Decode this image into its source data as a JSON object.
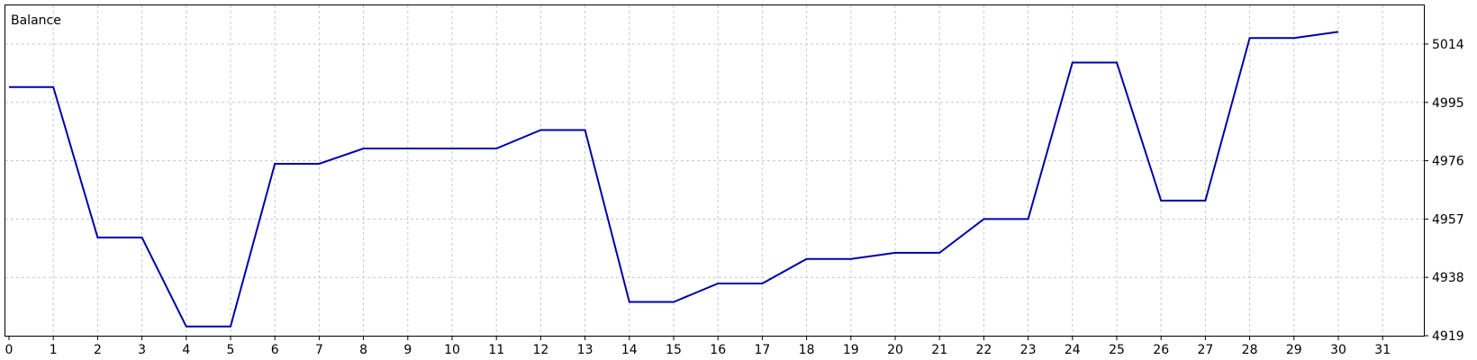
{
  "chart_data": {
    "type": "line",
    "title": "Balance",
    "x": [
      0,
      1,
      2,
      3,
      4,
      5,
      6,
      7,
      8,
      9,
      10,
      11,
      12,
      13,
      14,
      15,
      16,
      17,
      18,
      19,
      20,
      21,
      22,
      23,
      24,
      25,
      26,
      27,
      28,
      29,
      30
    ],
    "series": [
      {
        "values": [
          5000,
          5000,
          4951,
          4951,
          4922,
          4922,
          4975,
          4975,
          4980,
          4980,
          4980,
          4980,
          4986,
          4986,
          4930,
          4930,
          4936,
          4936,
          4944,
          4944,
          4946,
          4946,
          4957,
          4957,
          5008,
          5008,
          4963,
          4963,
          5016,
          5016,
          5018
        ],
        "color": "#0000aa"
      }
    ],
    "xticks": [
      "0",
      "1",
      "2",
      "3",
      "4",
      "5",
      "6",
      "7",
      "8",
      "9",
      "10",
      "11",
      "12",
      "13",
      "14",
      "15",
      "16",
      "17",
      "18",
      "19",
      "20",
      "21",
      "22",
      "23",
      "24",
      "25",
      "26",
      "27",
      "28",
      "29",
      "30",
      "31"
    ],
    "yticks": [
      "4919",
      "4938",
      "4957",
      "4976",
      "4995",
      "5014"
    ],
    "xlim": [
      0,
      31.7
    ],
    "ylim": [
      4919,
      5028
    ],
    "grid": true,
    "axis_position": "right"
  }
}
